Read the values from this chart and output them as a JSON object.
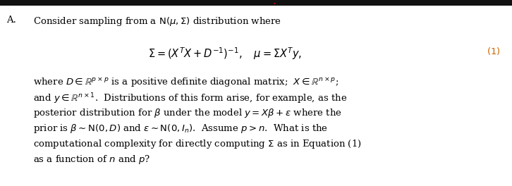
{
  "background_color": "#ffffff",
  "top_bar_color": "#111111",
  "red_dot_color": "#cc0000",
  "fig_width": 7.26,
  "fig_height": 2.64,
  "dpi": 100,
  "main_fs": 9.5,
  "eq_fs": 10.5,
  "eq_num_color": "#cc6600"
}
